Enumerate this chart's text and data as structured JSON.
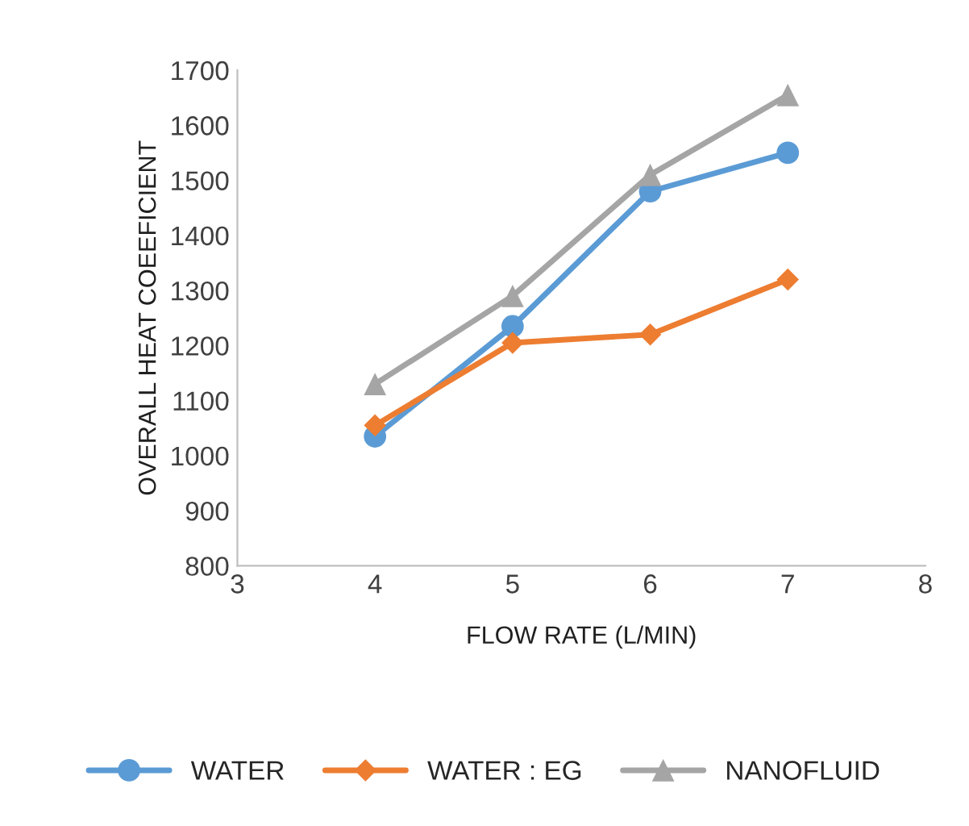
{
  "chart_data": {
    "type": "line",
    "xlabel": "FLOW RATE (L/MIN)",
    "ylabel": "OVERALL HEAT COEEFICIENT",
    "x": [
      4,
      5,
      6,
      7
    ],
    "series": [
      {
        "name": "WATER",
        "color": "#5b9bd5",
        "marker": "circle",
        "values": [
          1035,
          1235,
          1480,
          1550
        ]
      },
      {
        "name": "WATER : EG",
        "color": "#ed7d31",
        "marker": "diamond",
        "values": [
          1055,
          1205,
          1220,
          1320
        ]
      },
      {
        "name": "NANOFLUID",
        "color": "#a5a5a5",
        "marker": "triangle",
        "values": [
          1130,
          1290,
          1510,
          1655
        ]
      }
    ],
    "xlim": [
      3,
      8
    ],
    "xticks": [
      3,
      4,
      5,
      6,
      7,
      8
    ],
    "ylim": [
      800,
      1700
    ],
    "yticks": [
      800,
      900,
      1000,
      1100,
      1200,
      1300,
      1400,
      1500,
      1600,
      1700
    ],
    "grid": false,
    "legend": "bottom"
  }
}
